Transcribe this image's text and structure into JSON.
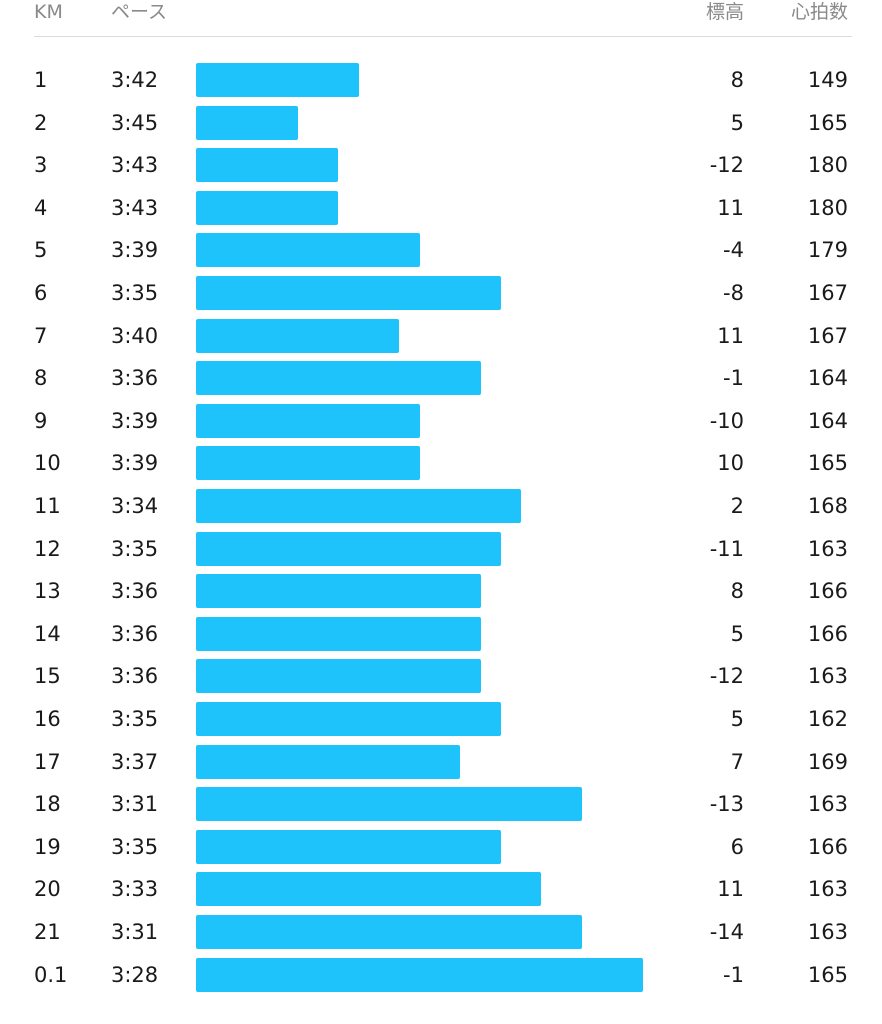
{
  "header": {
    "km": "KM",
    "pace": "ペース",
    "elevation": "標高",
    "heart_rate": "心拍数"
  },
  "colors": {
    "bar": "#1fc3fb",
    "header_text": "#8a8a8a",
    "divider": "#dcdcdc"
  },
  "bar_scale": {
    "pace_seconds_min": 160,
    "pace_seconds_max": 230
  },
  "splits": [
    {
      "km": "1",
      "pace": "3:42",
      "pace_seconds": 222,
      "elevation": "8",
      "heart_rate": "149"
    },
    {
      "km": "2",
      "pace": "3:45",
      "pace_seconds": 225,
      "elevation": "5",
      "heart_rate": "165"
    },
    {
      "km": "3",
      "pace": "3:43",
      "pace_seconds": 223,
      "elevation": "-12",
      "heart_rate": "180"
    },
    {
      "km": "4",
      "pace": "3:43",
      "pace_seconds": 223,
      "elevation": "11",
      "heart_rate": "180"
    },
    {
      "km": "5",
      "pace": "3:39",
      "pace_seconds": 219,
      "elevation": "-4",
      "heart_rate": "179"
    },
    {
      "km": "6",
      "pace": "3:35",
      "pace_seconds": 215,
      "elevation": "-8",
      "heart_rate": "167"
    },
    {
      "km": "7",
      "pace": "3:40",
      "pace_seconds": 220,
      "elevation": "11",
      "heart_rate": "167"
    },
    {
      "km": "8",
      "pace": "3:36",
      "pace_seconds": 216,
      "elevation": "-1",
      "heart_rate": "164"
    },
    {
      "km": "9",
      "pace": "3:39",
      "pace_seconds": 219,
      "elevation": "-10",
      "heart_rate": "164"
    },
    {
      "km": "10",
      "pace": "3:39",
      "pace_seconds": 219,
      "elevation": "10",
      "heart_rate": "165"
    },
    {
      "km": "11",
      "pace": "3:34",
      "pace_seconds": 214,
      "elevation": "2",
      "heart_rate": "168"
    },
    {
      "km": "12",
      "pace": "3:35",
      "pace_seconds": 215,
      "elevation": "-11",
      "heart_rate": "163"
    },
    {
      "km": "13",
      "pace": "3:36",
      "pace_seconds": 216,
      "elevation": "8",
      "heart_rate": "166"
    },
    {
      "km": "14",
      "pace": "3:36",
      "pace_seconds": 216,
      "elevation": "5",
      "heart_rate": "166"
    },
    {
      "km": "15",
      "pace": "3:36",
      "pace_seconds": 216,
      "elevation": "-12",
      "heart_rate": "163"
    },
    {
      "km": "16",
      "pace": "3:35",
      "pace_seconds": 215,
      "elevation": "5",
      "heart_rate": "162"
    },
    {
      "km": "17",
      "pace": "3:37",
      "pace_seconds": 217,
      "elevation": "7",
      "heart_rate": "169"
    },
    {
      "km": "18",
      "pace": "3:31",
      "pace_seconds": 211,
      "elevation": "-13",
      "heart_rate": "163"
    },
    {
      "km": "19",
      "pace": "3:35",
      "pace_seconds": 215,
      "elevation": "6",
      "heart_rate": "166"
    },
    {
      "km": "20",
      "pace": "3:33",
      "pace_seconds": 213,
      "elevation": "11",
      "heart_rate": "163"
    },
    {
      "km": "21",
      "pace": "3:31",
      "pace_seconds": 211,
      "elevation": "-14",
      "heart_rate": "163"
    },
    {
      "km": "0.1",
      "pace": "3:28",
      "pace_seconds": 208,
      "elevation": "-1",
      "heart_rate": "165"
    }
  ]
}
